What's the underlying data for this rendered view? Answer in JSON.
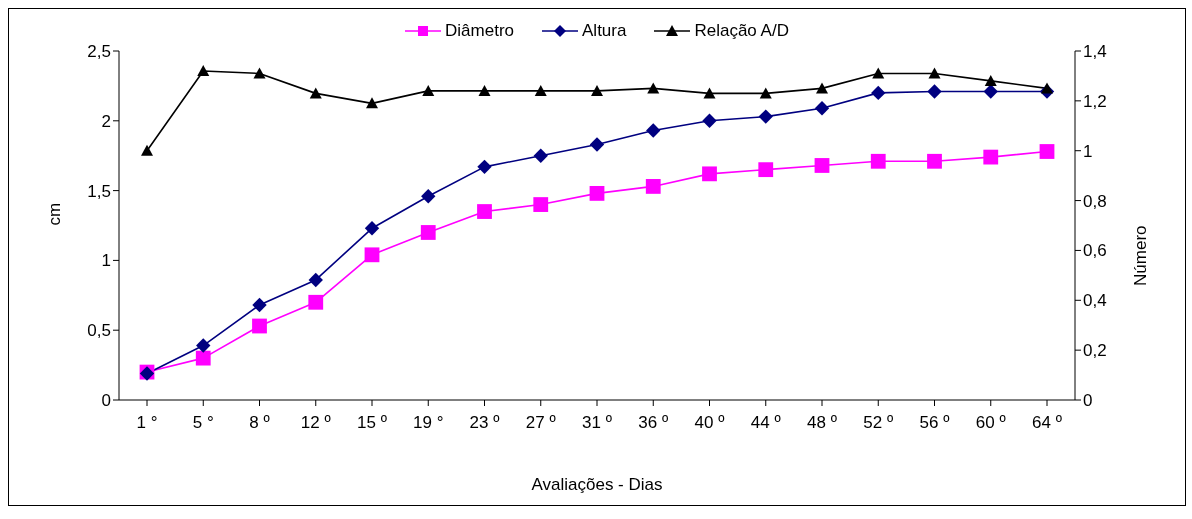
{
  "chart_data": {
    "type": "line",
    "xlabel": "Avaliações - Dias",
    "ylabel": "cm",
    "y2label": "Número",
    "categories": [
      "1 °",
      "5 °",
      "8 º",
      "12 º",
      "15 º",
      "19 °",
      "23 º",
      "27 º",
      "31 º",
      "36 º",
      "40 º",
      "44 º",
      "48 º",
      "52 º",
      "56 º",
      "60 º",
      "64 º"
    ],
    "series": [
      {
        "name": "Diâmetro",
        "color": "#ff00ff",
        "marker": "square",
        "values": [
          0.2,
          0.3,
          0.53,
          0.7,
          1.04,
          1.2,
          1.35,
          1.4,
          1.48,
          1.53,
          1.62,
          1.65,
          1.68,
          1.71,
          1.71,
          1.74,
          1.78
        ]
      },
      {
        "name": "Altura",
        "color": "#000080",
        "marker": "diamond",
        "values": [
          0.19,
          0.39,
          0.68,
          0.86,
          1.23,
          1.46,
          1.67,
          1.75,
          1.83,
          1.93,
          2.0,
          2.03,
          2.09,
          2.2,
          2.21,
          2.21,
          2.21
        ]
      },
      {
        "name": "Relação A/D",
        "color": "#000000",
        "marker": "triangle",
        "axis": "y2",
        "values": [
          1.0,
          1.32,
          1.31,
          1.23,
          1.19,
          1.24,
          1.24,
          1.24,
          1.24,
          1.25,
          1.23,
          1.23,
          1.25,
          1.31,
          1.31,
          1.28,
          1.25
        ]
      }
    ],
    "ylim": [
      0,
      2.5
    ],
    "yticks": [
      0,
      {
        "value": 0.5,
        "label": "0,5"
      },
      1,
      {
        "value": 1.5,
        "label": "1,5"
      },
      2,
      {
        "value": 2.5,
        "label": "2,5"
      }
    ],
    "y2lim": [
      0,
      1.4
    ],
    "y2ticks": [
      0,
      {
        "value": 0.2,
        "label": "0,2"
      },
      {
        "value": 0.4,
        "label": "0,4"
      },
      {
        "value": 0.6,
        "label": "0,6"
      },
      {
        "value": 0.8,
        "label": "0,8"
      },
      1,
      {
        "value": 1.2,
        "label": "1,2"
      },
      {
        "value": 1.4,
        "label": "1,4"
      }
    ],
    "grid": false,
    "legend": "top",
    "line_style": "solid"
  }
}
